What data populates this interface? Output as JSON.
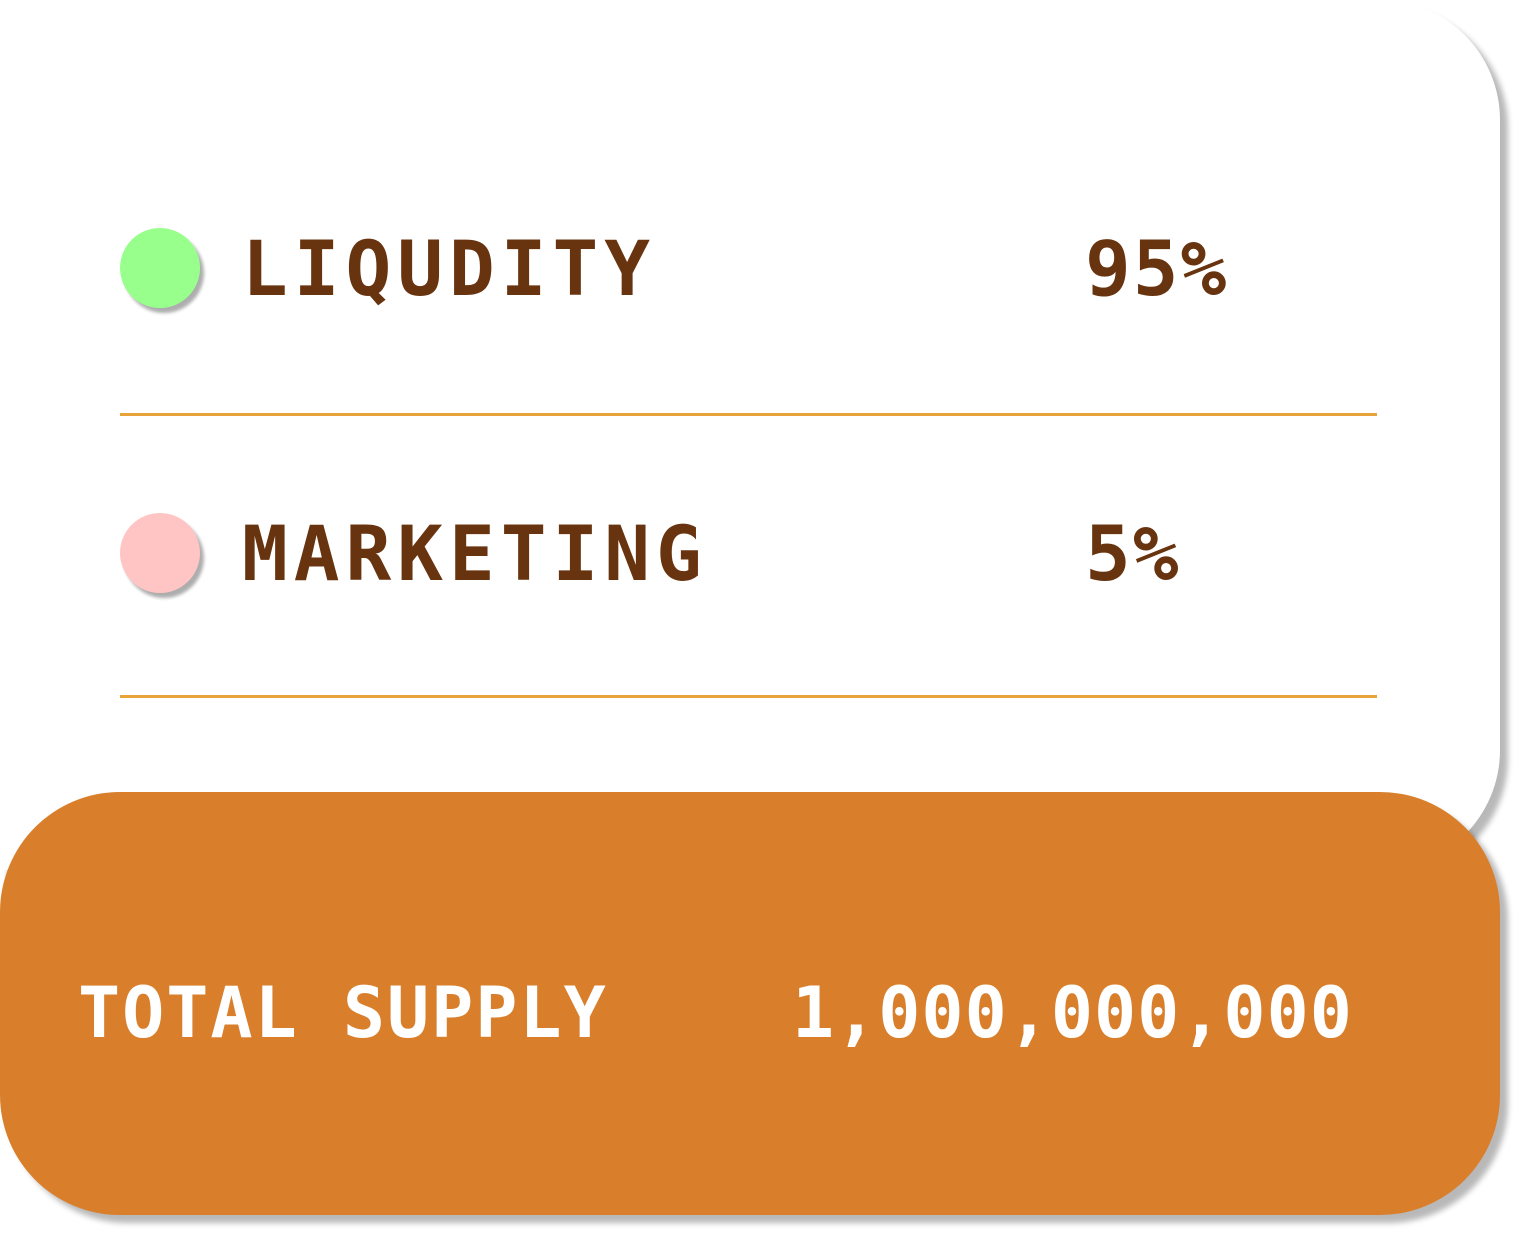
{
  "tokenomics": {
    "items": [
      {
        "label": "LIQUDITY",
        "percent": "95%",
        "dot_color": "#99ff8c"
      },
      {
        "label": "MARKETING",
        "percent": "5%",
        "dot_color": "#ffc4c4"
      }
    ]
  },
  "total_supply": {
    "label": "TOTAL SUPPLY",
    "value": "1,000,000,000"
  },
  "colors": {
    "text_brown": "#68340f",
    "divider": "#e8a33a",
    "total_bg": "#d97f2c"
  }
}
